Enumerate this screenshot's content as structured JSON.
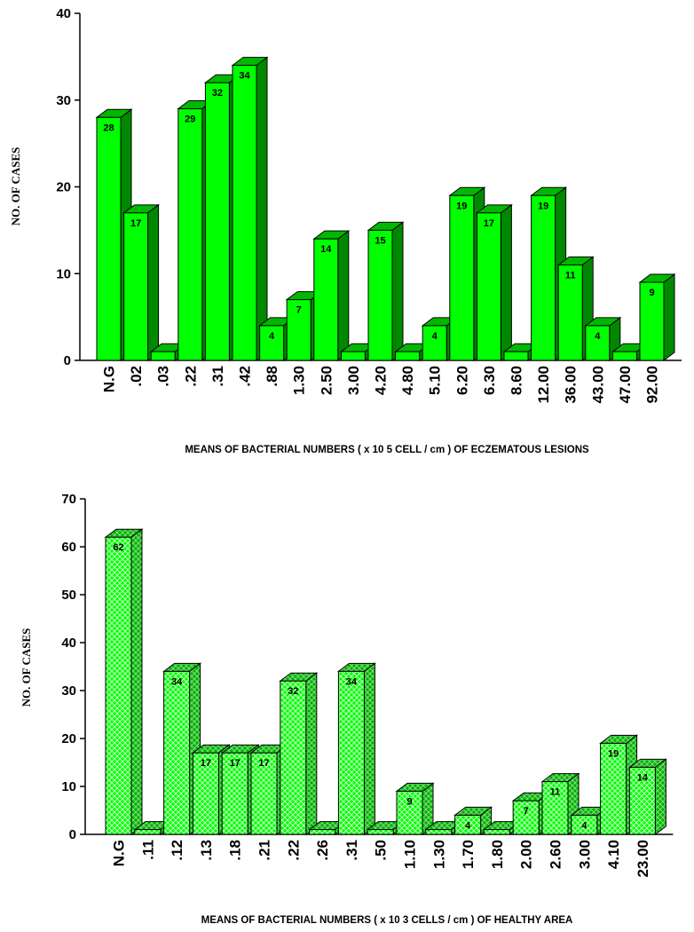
{
  "chart_data": [
    {
      "type": "bar",
      "categories": [
        "N.G",
        ".02",
        ".03",
        ".22",
        ".31",
        ".42",
        ".88",
        "1.30",
        "2.50",
        "3.00",
        "4.20",
        "4.80",
        "5.10",
        "6.20",
        "6.30",
        "8.60",
        "12.00",
        "36.00",
        "43.00",
        "47.00",
        "92.00"
      ],
      "values": [
        28,
        17,
        1,
        29,
        32,
        34,
        4,
        7,
        14,
        1,
        15,
        1,
        4,
        19,
        17,
        1,
        19,
        11,
        4,
        1,
        9
      ],
      "data_labels": [
        "28",
        "17",
        "",
        "29",
        "32",
        "34",
        "4",
        "7",
        "14",
        "",
        "15",
        "",
        "4",
        "19",
        "17",
        "",
        "19",
        "11",
        "4",
        "",
        "9"
      ],
      "ylim": [
        0,
        40
      ],
      "yticks": [
        "0",
        "10",
        "20",
        "30",
        "40"
      ],
      "ylabel": "NO. OF CASES",
      "xlabel": "MEANS OF  BACTERIAL NUMBERS ( x 10 5 CELL / cm ) OF ECZEMATOUS LESIONS",
      "fill": "solid",
      "color": "#00ff00"
    },
    {
      "type": "bar",
      "categories": [
        "N.G",
        ".11",
        ".12",
        ".13",
        ".18",
        ".21",
        ".22",
        ".26",
        ".31",
        ".50",
        "1.10",
        "1.30",
        "1.70",
        "1.80",
        "2.00",
        "2.60",
        "3.00",
        "4.10",
        "23.00"
      ],
      "values": [
        62,
        1,
        34,
        17,
        17,
        17,
        32,
        1,
        34,
        1,
        9,
        1,
        4,
        1,
        7,
        11,
        4,
        19,
        14
      ],
      "data_labels": [
        "62",
        "",
        "34",
        "17",
        "17",
        "17",
        "32",
        "",
        "34",
        "",
        "9",
        "",
        "4",
        "",
        "7",
        "11",
        "4",
        "19",
        "14"
      ],
      "ylim": [
        0,
        70
      ],
      "yticks": [
        "0",
        "10",
        "20",
        "30",
        "40",
        "50",
        "60",
        "70"
      ],
      "ylabel": "NO. OF CASES",
      "xlabel": "MEANS OF  BACTERIAL NUMBERS ( x 10 3 CELLS / cm ) OF HEALTHY AREA",
      "fill": "crosshatch",
      "color": "#00ff00"
    }
  ]
}
